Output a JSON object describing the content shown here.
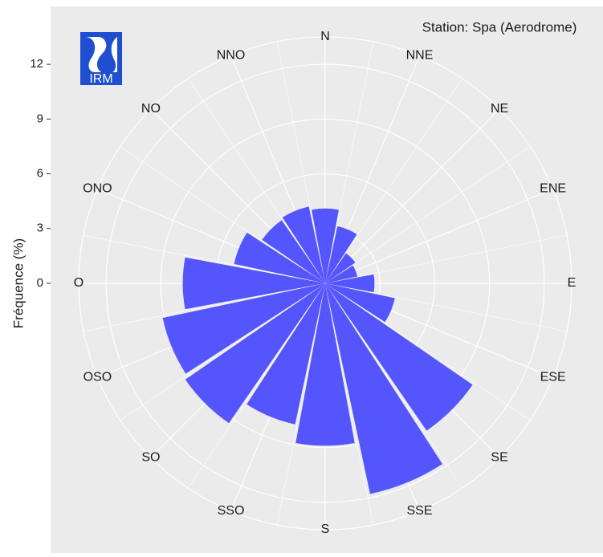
{
  "chart_data": {
    "type": "polar-bar",
    "annotation": "Station: Spa (Aerodrome)",
    "logo_text": "IRM",
    "y_label": "Fréquence (%)",
    "categories": [
      "N",
      "NNE",
      "NE",
      "ENE",
      "E",
      "ESE",
      "SE",
      "SSE",
      "S",
      "SSO",
      "SO",
      "OSO",
      "O",
      "ONO",
      "NO",
      "NNO"
    ],
    "values": [
      4.1,
      3.2,
      2.0,
      1.8,
      2.7,
      3.9,
      9.8,
      11.8,
      8.9,
      7.9,
      9.3,
      9.1,
      7.8,
      5.1,
      4.2,
      4.3
    ],
    "color": "#4d4dff",
    "ylim": [
      0,
      13.5
    ],
    "yticks": [
      0,
      3,
      6,
      9,
      12
    ],
    "grid": true
  }
}
